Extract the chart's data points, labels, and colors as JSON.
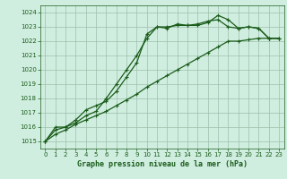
{
  "title": "Graphe pression niveau de la mer (hPa)",
  "bg_color": "#d0eee0",
  "grid_color": "#9dbfaa",
  "line_color": "#1a5c1a",
  "xlim": [
    -0.5,
    23.5
  ],
  "ylim": [
    1014.5,
    1024.5
  ],
  "yticks": [
    1015,
    1016,
    1017,
    1018,
    1019,
    1020,
    1021,
    1022,
    1023,
    1024
  ],
  "xticks": [
    0,
    1,
    2,
    3,
    4,
    5,
    6,
    7,
    8,
    9,
    10,
    11,
    12,
    13,
    14,
    15,
    16,
    17,
    18,
    19,
    20,
    21,
    22,
    23
  ],
  "line1_x": [
    0,
    1,
    2,
    3,
    4,
    5,
    6,
    7,
    8,
    9,
    10,
    11,
    12,
    13,
    14,
    15,
    16,
    17,
    18,
    19,
    20,
    21,
    22,
    23
  ],
  "line1_y": [
    1015.0,
    1016.0,
    1016.0,
    1016.3,
    1016.8,
    1017.1,
    1018.0,
    1019.0,
    1020.0,
    1021.0,
    1022.2,
    1023.0,
    1022.9,
    1023.2,
    1023.1,
    1023.1,
    1023.3,
    1023.8,
    1023.5,
    1022.9,
    1023.0,
    1022.9,
    1022.2,
    1022.2
  ],
  "line2_x": [
    0,
    1,
    2,
    3,
    4,
    5,
    6,
    7,
    8,
    9,
    10,
    11,
    12,
    13,
    14,
    15,
    16,
    17,
    18,
    19,
    20,
    21,
    22,
    23
  ],
  "line2_y": [
    1015.0,
    1015.8,
    1016.0,
    1016.5,
    1017.2,
    1017.5,
    1017.8,
    1018.5,
    1019.5,
    1020.5,
    1022.5,
    1023.0,
    1023.0,
    1023.1,
    1023.1,
    1023.2,
    1023.4,
    1023.5,
    1023.0,
    1022.9,
    1023.0,
    1022.9,
    1022.2,
    1022.2
  ],
  "line3_x": [
    0,
    1,
    2,
    3,
    4,
    5,
    6,
    7,
    8,
    9,
    10,
    11,
    12,
    13,
    14,
    15,
    16,
    17,
    18,
    19,
    20,
    21,
    22,
    23
  ],
  "line3_y": [
    1015.0,
    1015.5,
    1015.8,
    1016.2,
    1016.5,
    1016.8,
    1017.1,
    1017.5,
    1017.9,
    1018.3,
    1018.8,
    1019.2,
    1019.6,
    1020.0,
    1020.4,
    1020.8,
    1021.2,
    1021.6,
    1022.0,
    1022.0,
    1022.1,
    1022.2,
    1022.2,
    1022.2
  ],
  "title_fontsize": 6,
  "tick_fontsize": 5
}
